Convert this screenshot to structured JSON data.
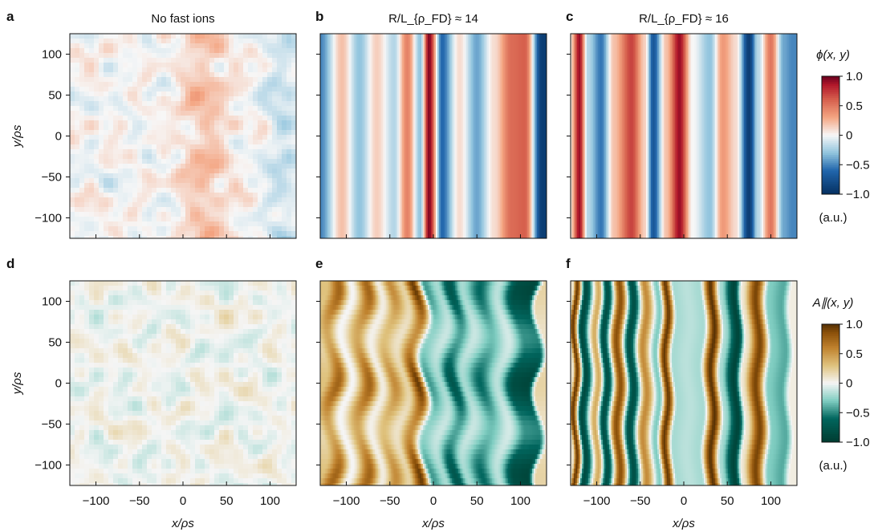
{
  "figure": {
    "panels": [
      {
        "id": "a",
        "label": "a",
        "title": "No fast ions",
        "row": 0,
        "col": 0,
        "field": "phi",
        "pattern": "turbulent"
      },
      {
        "id": "b",
        "label": "b",
        "title": "R/L_{ρ_FD} ≈ 14",
        "row": 0,
        "col": 1,
        "field": "phi",
        "pattern": "zonal_b"
      },
      {
        "id": "c",
        "label": "c",
        "title": "R/L_{ρ_FD} ≈ 16",
        "row": 0,
        "col": 2,
        "field": "phi",
        "pattern": "zonal_c"
      },
      {
        "id": "d",
        "label": "d",
        "title": "",
        "row": 1,
        "col": 0,
        "field": "apar",
        "pattern": "turbulent"
      },
      {
        "id": "e",
        "label": "e",
        "title": "",
        "row": 1,
        "col": 1,
        "field": "apar",
        "pattern": "zonal_e"
      },
      {
        "id": "f",
        "label": "f",
        "title": "",
        "row": 1,
        "col": 2,
        "field": "apar",
        "pattern": "zonal_f"
      }
    ],
    "colorbars": [
      {
        "id": "phi",
        "title": "ϕ(x, y)",
        "ticks": [
          "1.0",
          "0.5",
          "0",
          "−0.5",
          "−1.0"
        ],
        "unit": "(a.u.)",
        "colormap": "RdBu_r"
      },
      {
        "id": "apar",
        "title": "A∥(x, y)",
        "ticks": [
          "1.0",
          "0.5",
          "0",
          "−0.5",
          "−1.0"
        ],
        "unit": "(a.u.)",
        "colormap": "BrBG_r"
      }
    ],
    "x_ticks": [
      "−100",
      "−50",
      "0",
      "50",
      "100"
    ],
    "y_ticks": [
      "100",
      "50",
      "0",
      "−50",
      "−100"
    ],
    "xlabel": "x/ρs",
    "ylabel": "y/ρs"
  },
  "chart_data": {
    "type": "heatmap",
    "xlim": [
      -130,
      130
    ],
    "ylim": [
      -125,
      125
    ],
    "clim": [
      -1.0,
      1.0
    ],
    "colors": {
      "phi_neg": "#053061",
      "phi_zero": "#f7f7f7",
      "phi_pos": "#67001f",
      "apar_neg": "#003c30",
      "apar_zero": "#f5f5f5",
      "apar_pos": "#543005"
    },
    "profiles": {
      "zonal_b": {
        "x": [
          -130,
          -105,
          -85,
          -65,
          -45,
          -30,
          -15,
          -5,
          10,
          30,
          50,
          70,
          90,
          105,
          125
        ],
        "v": [
          -0.5,
          0.2,
          -0.3,
          0.15,
          -0.2,
          0.45,
          -0.3,
          0.95,
          -0.6,
          0.1,
          -0.4,
          0.1,
          0.55,
          0.6,
          -0.9
        ]
      },
      "zonal_c": {
        "x": [
          -130,
          -120,
          -110,
          -95,
          -80,
          -60,
          -45,
          -35,
          -20,
          -5,
          10,
          30,
          45,
          60,
          75,
          85,
          100,
          115,
          125
        ],
        "v": [
          0.1,
          0.9,
          -0.2,
          -0.55,
          0.2,
          0.7,
          0.15,
          -0.7,
          0.2,
          0.9,
          0.0,
          -0.3,
          0.35,
          0.1,
          -0.9,
          -0.2,
          0.5,
          -0.4,
          -0.5
        ]
      },
      "zonal_e": {
        "x": [
          -130,
          -115,
          -100,
          -80,
          -65,
          -50,
          -35,
          -20,
          -5,
          10,
          25,
          40,
          60,
          80,
          100,
          115,
          125
        ],
        "v": [
          0.3,
          0.75,
          0.0,
          0.75,
          0.05,
          0.55,
          0.2,
          0.95,
          -0.45,
          -0.2,
          -0.75,
          -0.2,
          -0.6,
          -0.15,
          -0.85,
          -0.9,
          0.2
        ]
      },
      "zonal_f": {
        "x": [
          -130,
          -125,
          -115,
          -100,
          -90,
          -75,
          -60,
          -45,
          -30,
          -20,
          -10,
          5,
          20,
          33,
          45,
          60,
          70,
          85,
          100,
          115,
          125
        ],
        "v": [
          0.1,
          0.95,
          -0.85,
          0.4,
          -0.8,
          0.85,
          -0.8,
          0.55,
          -0.3,
          0.95,
          -0.2,
          -0.15,
          -0.2,
          0.98,
          -0.2,
          -0.9,
          0.1,
          0.9,
          -0.3,
          -0.4,
          0.05
        ]
      }
    }
  }
}
